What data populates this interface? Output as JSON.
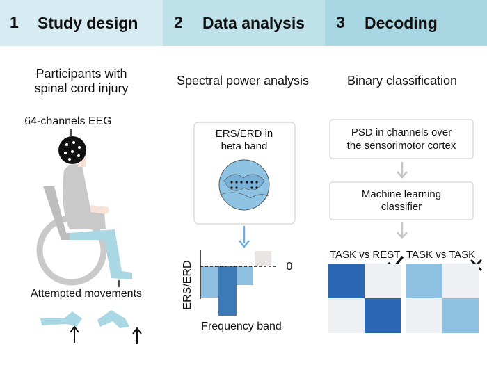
{
  "columns": [
    {
      "number": "1",
      "title": "Study design"
    },
    {
      "number": "2",
      "title": "Data analysis"
    },
    {
      "number": "3",
      "title": "Decoding"
    }
  ],
  "study_design": {
    "heading_lines": [
      "Participants with",
      "spinal cord injury"
    ],
    "eeg_label": "64-channels EEG",
    "movements_label": "Attempted movements"
  },
  "data_analysis": {
    "heading": "Spectral power analysis",
    "box_lines": [
      "ERS/ERD in",
      "beta band"
    ],
    "y_label": "ERS/ERD",
    "x_label": "Frequency band",
    "zero_label": "0"
  },
  "decoding": {
    "heading": "Binary classification",
    "box1_lines": [
      "PSD in channels over",
      "the sensorimotor cortex"
    ],
    "box2_lines": [
      "Machine learning",
      "classifier"
    ],
    "matrix1_label": "TASK vs REST",
    "matrix2_label": "TASK vs TASK"
  }
}
